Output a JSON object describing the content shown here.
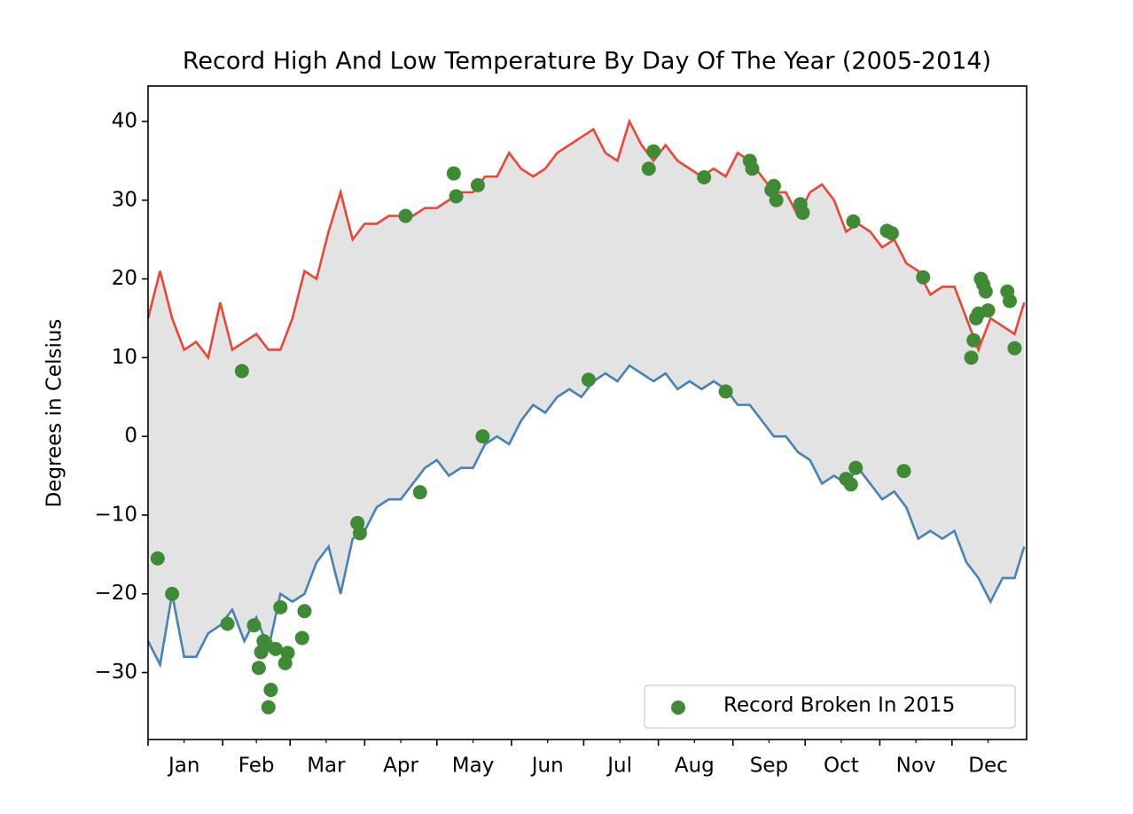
{
  "chart_data": {
    "type": "line",
    "title": "Record High And Low Temperature By Day Of The Year (2005-2014)",
    "ylabel": "Degrees in Celsius",
    "x": [
      0,
      5,
      10,
      15,
      20,
      25,
      30,
      35,
      40,
      45,
      50,
      55,
      60,
      65,
      70,
      75,
      80,
      85,
      90,
      95,
      100,
      105,
      110,
      115,
      120,
      125,
      130,
      135,
      140,
      145,
      150,
      155,
      160,
      165,
      170,
      175,
      180,
      185,
      190,
      195,
      200,
      205,
      210,
      215,
      220,
      225,
      230,
      235,
      240,
      245,
      250,
      255,
      260,
      265,
      270,
      275,
      280,
      285,
      290,
      295,
      300,
      305,
      310,
      315,
      320,
      325,
      330,
      335,
      340,
      345,
      350,
      355,
      360,
      364
    ],
    "series": [
      {
        "color": "#ee4433",
        "values": [
          15,
          21,
          15,
          11,
          12,
          10,
          17,
          11,
          12,
          13,
          11,
          11,
          15,
          21,
          20,
          26,
          31,
          25,
          27,
          27,
          28,
          28,
          28,
          29,
          29,
          30,
          31,
          31,
          33,
          33,
          36,
          34,
          33,
          34,
          36,
          37,
          38,
          39,
          36,
          35,
          40,
          37,
          35,
          37,
          35,
          34,
          33,
          34,
          33,
          36,
          35,
          33,
          31,
          31,
          28,
          31,
          32,
          30,
          26,
          27,
          26,
          24,
          25,
          22,
          21,
          18,
          19,
          19,
          15,
          11,
          15,
          14,
          13,
          17
        ]
      },
      {
        "color": "#4682b4",
        "values": [
          -26,
          -29,
          -20,
          -28,
          -28,
          -25,
          -24,
          -22,
          -26,
          -23,
          -27,
          -20,
          -21,
          -20,
          -16,
          -14,
          -20,
          -13,
          -12,
          -9,
          -8,
          -8,
          -6,
          -4,
          -3,
          -5,
          -4,
          -4,
          -1,
          0,
          -1,
          2,
          4,
          3,
          5,
          6,
          5,
          7,
          8,
          7,
          9,
          8,
          7,
          8,
          6,
          7,
          6,
          7,
          6,
          4,
          4,
          2,
          0,
          0,
          -2,
          -3,
          -6,
          -5,
          -6,
          -4,
          -6,
          -8,
          -7,
          -9,
          -13,
          -12,
          -13,
          -12,
          -16,
          -18,
          -21,
          -18,
          -18,
          -14
        ]
      }
    ],
    "fill_color": "#e3e3e3",
    "scatter": {
      "name": "Record Broken In 2015",
      "color": "#3f8a34",
      "x": [
        4,
        10,
        33,
        39,
        44,
        46,
        47,
        48,
        49,
        50,
        51,
        53,
        55,
        57,
        58,
        64,
        65,
        87,
        88,
        107,
        113,
        127,
        128,
        137,
        139,
        183,
        208,
        210,
        231,
        240,
        250,
        251,
        259,
        260,
        261,
        271,
        272,
        290,
        292,
        294,
        293,
        307,
        309,
        314,
        322,
        342,
        343,
        344,
        345,
        346,
        347,
        348,
        349,
        357,
        358,
        360
      ],
      "values": [
        -15.5,
        -20,
        -23.8,
        8.3,
        -24,
        -29.4,
        -27.4,
        -26,
        -26.4,
        -34.4,
        -32.2,
        -27,
        -21.7,
        -28.8,
        -27.5,
        -25.6,
        -22.2,
        -11,
        -12.3,
        28,
        -7.1,
        33.4,
        30.5,
        31.9,
        0,
        7.2,
        34,
        36.2,
        32.9,
        5.7,
        35,
        34,
        31.3,
        31.8,
        30,
        29.5,
        28.4,
        -5.4,
        -6.1,
        -4,
        27.3,
        26.1,
        25.8,
        -4.4,
        20.2,
        10,
        12.2,
        15,
        15.6,
        20,
        19.3,
        18.4,
        16,
        18.4,
        17.2,
        11.2
      ]
    },
    "legend": "lower right",
    "xlim": [
      0,
      365
    ],
    "ylim": [
      -38.5,
      44.5
    ],
    "yticks": [
      {
        "value": -30,
        "label": "−30"
      },
      {
        "value": -20,
        "label": "−20"
      },
      {
        "value": -10,
        "label": "−10"
      },
      0,
      10,
      20,
      30,
      40
    ],
    "xticks": [
      {
        "value": 15,
        "label": "Jan"
      },
      {
        "value": 45,
        "label": "Feb"
      },
      {
        "value": 74,
        "label": "Mar"
      },
      {
        "value": 105,
        "label": "Apr"
      },
      {
        "value": 135,
        "label": "May"
      },
      {
        "value": 166,
        "label": "Jun"
      },
      {
        "value": 196,
        "label": "Jul"
      },
      {
        "value": 227,
        "label": "Aug"
      },
      {
        "value": 258,
        "label": "Sep"
      },
      {
        "value": 288,
        "label": "Oct"
      },
      {
        "value": 319,
        "label": "Nov"
      },
      {
        "value": 349,
        "label": "Dec"
      }
    ],
    "month_edges": [
      0,
      31,
      59,
      90,
      120,
      151,
      181,
      212,
      243,
      273,
      304,
      334
    ]
  }
}
